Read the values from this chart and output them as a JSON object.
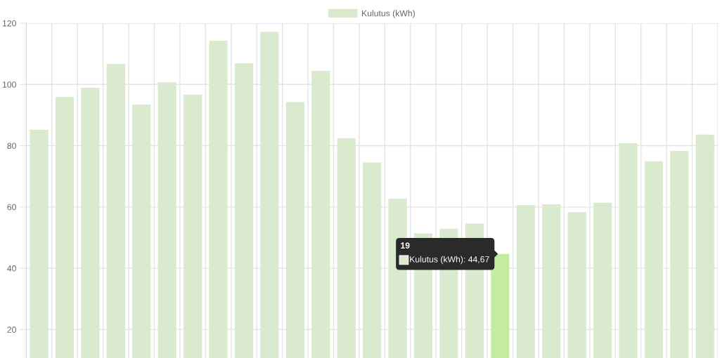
{
  "chart_data": {
    "type": "bar",
    "categories": [
      null,
      null,
      null,
      null,
      null,
      null,
      null,
      null,
      null,
      null,
      null,
      null,
      null,
      null,
      null,
      null,
      null,
      null,
      null,
      null,
      null,
      null,
      null,
      null,
      null,
      null,
      null
    ],
    "series": [
      {
        "name": "Kulutus (kWh)",
        "color": "#d9eacf",
        "colors": [
          "#d9eacf",
          "#d9eacf",
          "#d9eacf",
          "#d9eacf",
          "#d9eacf",
          "#d9eacf",
          "#d9eacf",
          "#d9eacf",
          "#d9eacf",
          "#d9eacf",
          "#d9eacf",
          "#d9eacf",
          "#d9eacf",
          "#d9eacf",
          "#d9eacf",
          "#d9eacf",
          "#d9eacf",
          "#d9eacf",
          "#c5eba0",
          "#d9eacf",
          "#d9eacf",
          "#d9eacf",
          "#d9eacf",
          "#d9eacf",
          "#d9eacf",
          "#d9eacf",
          "#d9eacf"
        ],
        "values": [
          85.2,
          95.9,
          98.9,
          106.7,
          93.4,
          100.7,
          96.7,
          114.3,
          106.9,
          117.2,
          94.2,
          104.4,
          82.4,
          74.5,
          62.7,
          51.4,
          52.9,
          54.6,
          44.67,
          60.6,
          60.9,
          58.3,
          61.4,
          80.8,
          74.9,
          78.3,
          83.6
        ]
      }
    ],
    "ylim": [
      10.7,
      120
    ],
    "yticks": [
      20,
      40,
      60,
      80,
      100,
      120
    ],
    "grid": true,
    "legend": "top",
    "tick_labels": "y",
    "annotations": [
      {
        "text": "19",
        "y": 44.67
      },
      "Kulutus (kWh): 44,67"
    ]
  }
}
